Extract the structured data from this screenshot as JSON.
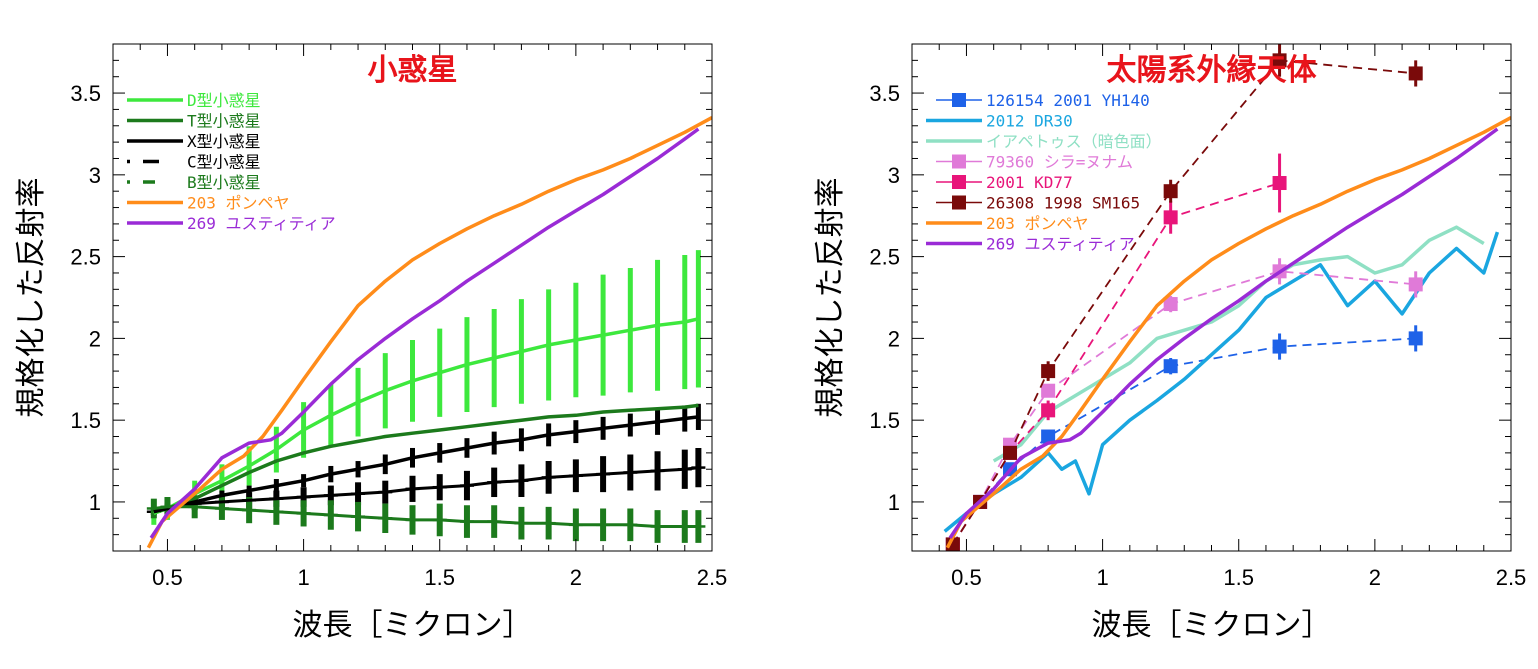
{
  "chart_data": [
    {
      "type": "line",
      "title": "小惑星",
      "title_color": "#e8141b",
      "xlabel": "波長［ミクロン］",
      "ylabel": "規格化した反射率",
      "xlim": [
        0.3,
        2.5
      ],
      "ylim": [
        0.7,
        3.8
      ],
      "x_ticks": [
        "0.5",
        "1",
        "1.5",
        "2",
        "2.5"
      ],
      "y_ticks": [
        "1",
        "1.5",
        "2",
        "2.5",
        "3",
        "3.5"
      ],
      "grid": false,
      "legend_position": "top-left",
      "series": [
        {
          "name": "D型小惑星",
          "color": "#3de83d",
          "style": "solid",
          "error_bars": true,
          "x": [
            0.45,
            0.5,
            0.6,
            0.7,
            0.8,
            0.9,
            1.0,
            1.1,
            1.2,
            1.3,
            1.4,
            1.5,
            1.6,
            1.7,
            1.8,
            1.9,
            2.0,
            2.1,
            2.2,
            2.3,
            2.4,
            2.45
          ],
          "y": [
            0.93,
            0.96,
            1.05,
            1.13,
            1.22,
            1.32,
            1.44,
            1.53,
            1.61,
            1.68,
            1.74,
            1.79,
            1.84,
            1.88,
            1.92,
            1.96,
            1.99,
            2.02,
            2.05,
            2.08,
            2.1,
            2.12
          ],
          "err": [
            0.07,
            0.07,
            0.08,
            0.1,
            0.12,
            0.14,
            0.17,
            0.19,
            0.21,
            0.23,
            0.25,
            0.27,
            0.29,
            0.3,
            0.32,
            0.34,
            0.35,
            0.37,
            0.38,
            0.4,
            0.41,
            0.42
          ]
        },
        {
          "name": "T型小惑星",
          "color": "#1c7a1c",
          "style": "solid",
          "error_bars": false,
          "x": [
            0.45,
            0.5,
            0.6,
            0.7,
            0.8,
            0.9,
            1.0,
            1.1,
            1.2,
            1.3,
            1.4,
            1.5,
            1.6,
            1.7,
            1.8,
            1.9,
            2.0,
            2.1,
            2.2,
            2.3,
            2.4,
            2.45
          ],
          "y": [
            0.94,
            0.96,
            1.02,
            1.1,
            1.18,
            1.25,
            1.3,
            1.34,
            1.37,
            1.4,
            1.42,
            1.44,
            1.46,
            1.48,
            1.5,
            1.52,
            1.53,
            1.55,
            1.56,
            1.57,
            1.58,
            1.59
          ]
        },
        {
          "name": "X型小惑星",
          "color": "#000000",
          "style": "solid",
          "error_bars": true,
          "x": [
            0.45,
            0.5,
            0.6,
            0.7,
            0.8,
            0.9,
            1.0,
            1.1,
            1.2,
            1.3,
            1.4,
            1.5,
            1.6,
            1.7,
            1.8,
            1.9,
            2.0,
            2.1,
            2.2,
            2.3,
            2.4,
            2.45
          ],
          "y": [
            0.94,
            0.96,
            1.0,
            1.04,
            1.07,
            1.1,
            1.13,
            1.17,
            1.2,
            1.23,
            1.27,
            1.3,
            1.33,
            1.36,
            1.38,
            1.41,
            1.43,
            1.45,
            1.47,
            1.49,
            1.51,
            1.52
          ],
          "err": [
            0.02,
            0.02,
            0.02,
            0.03,
            0.03,
            0.04,
            0.04,
            0.05,
            0.05,
            0.06,
            0.06,
            0.06,
            0.06,
            0.07,
            0.07,
            0.07,
            0.07,
            0.07,
            0.07,
            0.08,
            0.08,
            0.08
          ]
        },
        {
          "name": "C型小惑星",
          "color": "#000000",
          "style": "dashed",
          "error_bars": true,
          "x": [
            0.45,
            0.5,
            0.6,
            0.7,
            0.8,
            0.9,
            1.0,
            1.1,
            1.2,
            1.3,
            1.4,
            1.5,
            1.6,
            1.7,
            1.8,
            1.9,
            2.0,
            2.1,
            2.2,
            2.3,
            2.4,
            2.45
          ],
          "y": [
            0.94,
            0.96,
            0.99,
            1.0,
            1.01,
            1.02,
            1.03,
            1.04,
            1.05,
            1.06,
            1.08,
            1.09,
            1.1,
            1.12,
            1.13,
            1.15,
            1.16,
            1.17,
            1.18,
            1.19,
            1.2,
            1.21
          ],
          "err": [
            0.02,
            0.03,
            0.04,
            0.04,
            0.05,
            0.05,
            0.06,
            0.06,
            0.07,
            0.07,
            0.08,
            0.08,
            0.09,
            0.09,
            0.1,
            0.1,
            0.1,
            0.11,
            0.11,
            0.12,
            0.12,
            0.12
          ]
        },
        {
          "name": "B型小惑星",
          "color": "#1c7a1c",
          "style": "dashed",
          "error_bars": true,
          "x": [
            0.45,
            0.5,
            0.6,
            0.7,
            0.8,
            0.9,
            1.0,
            1.1,
            1.2,
            1.3,
            1.4,
            1.5,
            1.6,
            1.7,
            1.8,
            1.9,
            2.0,
            2.1,
            2.2,
            2.3,
            2.4,
            2.45
          ],
          "y": [
            0.96,
            0.97,
            0.97,
            0.96,
            0.95,
            0.94,
            0.93,
            0.92,
            0.91,
            0.9,
            0.89,
            0.89,
            0.88,
            0.88,
            0.87,
            0.87,
            0.86,
            0.86,
            0.86,
            0.85,
            0.85,
            0.85
          ],
          "err": [
            0.06,
            0.06,
            0.07,
            0.07,
            0.08,
            0.08,
            0.08,
            0.09,
            0.09,
            0.09,
            0.09,
            0.1,
            0.1,
            0.1,
            0.1,
            0.1,
            0.1,
            0.1,
            0.1,
            0.1,
            0.1,
            0.1
          ]
        },
        {
          "name": "203 ポンペヤ",
          "color": "#ff8c1a",
          "style": "solid",
          "error_bars": false,
          "x": [
            0.43,
            0.48,
            0.55,
            0.62,
            0.7,
            0.78,
            0.85,
            0.92,
            1.0,
            1.1,
            1.2,
            1.3,
            1.4,
            1.5,
            1.6,
            1.7,
            1.8,
            1.9,
            2.0,
            2.1,
            2.2,
            2.3,
            2.4,
            2.5
          ],
          "y": [
            0.72,
            0.88,
            0.98,
            1.08,
            1.2,
            1.28,
            1.4,
            1.56,
            1.75,
            1.98,
            2.2,
            2.35,
            2.48,
            2.58,
            2.67,
            2.75,
            2.82,
            2.9,
            2.97,
            3.03,
            3.1,
            3.18,
            3.26,
            3.35
          ]
        },
        {
          "name": "269 ユスティティア",
          "color": "#9a2bd6",
          "style": "solid",
          "error_bars": false,
          "x": [
            0.44,
            0.5,
            0.6,
            0.7,
            0.8,
            0.88,
            0.92,
            1.0,
            1.1,
            1.2,
            1.3,
            1.4,
            1.5,
            1.6,
            1.7,
            1.8,
            1.9,
            2.0,
            2.1,
            2.2,
            2.3,
            2.4,
            2.45
          ],
          "y": [
            0.78,
            0.93,
            1.08,
            1.27,
            1.36,
            1.38,
            1.42,
            1.55,
            1.72,
            1.87,
            2.0,
            2.12,
            2.23,
            2.35,
            2.46,
            2.57,
            2.68,
            2.78,
            2.88,
            2.99,
            3.1,
            3.22,
            3.28
          ]
        }
      ]
    },
    {
      "type": "line",
      "title": "太陽系外縁天体",
      "title_color": "#e8141b",
      "xlabel": "波長［ミクロン］",
      "ylabel": "規格化した反射率",
      "xlim": [
        0.3,
        2.5
      ],
      "ylim": [
        0.7,
        3.8
      ],
      "x_ticks": [
        "0.5",
        "1",
        "1.5",
        "2",
        "2.5"
      ],
      "y_ticks": [
        "1",
        "1.5",
        "2",
        "2.5",
        "3",
        "3.5"
      ],
      "grid": false,
      "legend_position": "top-left",
      "series": [
        {
          "name": "126154 2001 YH140",
          "color": "#1e62e8",
          "kind": "points",
          "x": [
            0.45,
            0.55,
            0.66,
            0.8,
            1.25,
            1.65,
            2.15
          ],
          "y": [
            0.74,
            1.0,
            1.2,
            1.4,
            1.83,
            1.95,
            2.0
          ],
          "err": [
            0.02,
            0.02,
            0.03,
            0.04,
            0.05,
            0.08,
            0.08
          ]
        },
        {
          "name": "2012 DR30",
          "color": "#1aa6e0",
          "kind": "spectrum",
          "x": [
            0.42,
            0.5,
            0.6,
            0.7,
            0.8,
            0.85,
            0.9,
            0.95,
            1.0,
            1.1,
            1.2,
            1.3,
            1.4,
            1.5,
            1.6,
            1.7,
            1.8,
            1.9,
            2.0,
            2.1,
            2.2,
            2.3,
            2.4,
            2.45
          ],
          "y": [
            0.82,
            0.93,
            1.05,
            1.15,
            1.3,
            1.2,
            1.25,
            1.05,
            1.35,
            1.5,
            1.62,
            1.75,
            1.9,
            2.05,
            2.25,
            2.35,
            2.45,
            2.2,
            2.35,
            2.15,
            2.4,
            2.55,
            2.4,
            2.65
          ]
        },
        {
          "name": "イアペトゥス（暗色面）",
          "color": "#8fe0c4",
          "kind": "spectrum",
          "x": [
            0.6,
            0.7,
            0.8,
            0.9,
            1.0,
            1.1,
            1.2,
            1.3,
            1.4,
            1.5,
            1.6,
            1.7,
            1.8,
            1.9,
            2.0,
            2.1,
            2.2,
            2.3,
            2.4
          ],
          "y": [
            1.25,
            1.35,
            1.55,
            1.65,
            1.75,
            1.85,
            2.0,
            2.05,
            2.1,
            2.2,
            2.35,
            2.45,
            2.48,
            2.5,
            2.4,
            2.45,
            2.6,
            2.68,
            2.58
          ]
        },
        {
          "name": "79360 シラ=ヌナム",
          "color": "#e07ad8",
          "kind": "points",
          "x": [
            0.45,
            0.55,
            0.66,
            0.8,
            1.25,
            1.65,
            2.15
          ],
          "y": [
            0.74,
            1.0,
            1.35,
            1.68,
            2.21,
            2.41,
            2.33
          ],
          "err": [
            0.02,
            0.02,
            0.03,
            0.04,
            0.05,
            0.08,
            0.08
          ]
        },
        {
          "name": "2001 KD77",
          "color": "#e8157a",
          "kind": "points",
          "x": [
            0.45,
            0.55,
            0.66,
            0.8,
            1.25,
            1.65
          ],
          "y": [
            0.74,
            1.0,
            1.3,
            1.56,
            2.74,
            2.95
          ],
          "err": [
            0.02,
            0.02,
            0.04,
            0.06,
            0.1,
            0.18
          ]
        },
        {
          "name": "26308 1998 SM165",
          "color": "#7a0a0a",
          "kind": "points",
          "x": [
            0.45,
            0.55,
            0.66,
            0.8,
            1.25,
            1.65,
            2.15
          ],
          "y": [
            0.74,
            1.0,
            1.3,
            1.8,
            2.9,
            3.7,
            3.62
          ],
          "err": [
            0.02,
            0.02,
            0.04,
            0.06,
            0.07,
            0.1,
            0.08
          ]
        },
        {
          "name": "203 ポンペヤ",
          "color": "#ff8c1a",
          "kind": "line",
          "x": [
            0.43,
            0.48,
            0.55,
            0.62,
            0.7,
            0.78,
            0.85,
            0.92,
            1.0,
            1.1,
            1.2,
            1.3,
            1.4,
            1.5,
            1.6,
            1.7,
            1.8,
            1.9,
            2.0,
            2.1,
            2.2,
            2.3,
            2.4,
            2.5
          ],
          "y": [
            0.72,
            0.88,
            0.98,
            1.08,
            1.2,
            1.28,
            1.4,
            1.56,
            1.75,
            1.98,
            2.2,
            2.35,
            2.48,
            2.58,
            2.67,
            2.75,
            2.82,
            2.9,
            2.97,
            3.03,
            3.1,
            3.18,
            3.26,
            3.35
          ]
        },
        {
          "name": "269 ユスティティア",
          "color": "#9a2bd6",
          "kind": "line",
          "x": [
            0.44,
            0.5,
            0.6,
            0.7,
            0.8,
            0.88,
            0.92,
            1.0,
            1.1,
            1.2,
            1.3,
            1.4,
            1.5,
            1.6,
            1.7,
            1.8,
            1.9,
            2.0,
            2.1,
            2.2,
            2.3,
            2.4,
            2.45
          ],
          "y": [
            0.78,
            0.93,
            1.08,
            1.27,
            1.36,
            1.38,
            1.42,
            1.55,
            1.72,
            1.87,
            2.0,
            2.12,
            2.23,
            2.35,
            2.46,
            2.57,
            2.68,
            2.78,
            2.88,
            2.99,
            3.1,
            3.22,
            3.28
          ]
        }
      ]
    }
  ]
}
